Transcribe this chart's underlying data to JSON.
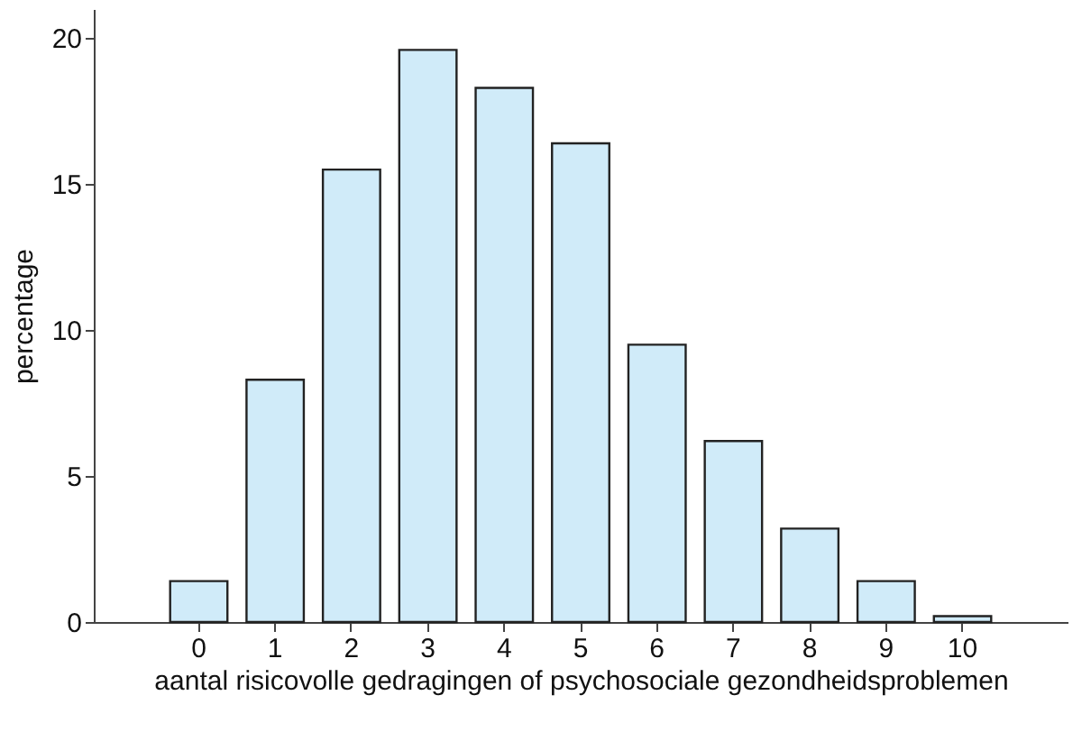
{
  "chart_data": {
    "type": "bar",
    "xlabel": "aantal risicovolle gedragingen of psychosociale gezondheidsproblemen",
    "ylabel": "percentage",
    "categories": [
      "0",
      "1",
      "2",
      "3",
      "4",
      "5",
      "6",
      "7",
      "8",
      "9",
      "10"
    ],
    "values": [
      1.4,
      8.3,
      15.5,
      19.6,
      18.3,
      16.4,
      9.5,
      6.2,
      3.2,
      1.4,
      0.2
    ],
    "color": "#d0ebf9",
    "ylim": [
      0,
      21
    ],
    "yticks": [
      0,
      5,
      10,
      15,
      20
    ],
    "grid": false
  }
}
